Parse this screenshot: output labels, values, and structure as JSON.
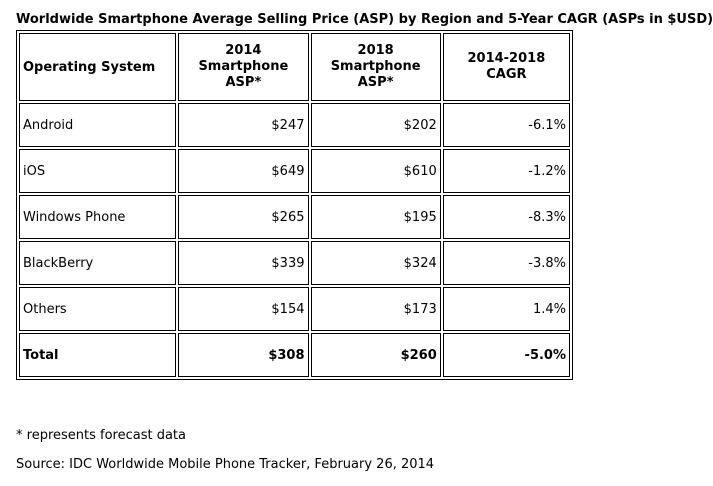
{
  "title": "Worldwide Smartphone Average Selling Price (ASP) by Region and 5-Year CAGR (ASPs in $USD)",
  "table": {
    "headers": [
      "Operating System",
      "2014 Smartphone ASP*",
      "2018 Smartphone ASP*",
      "2014-2018 CAGR"
    ],
    "rows": [
      [
        "Android",
        "$247",
        "$202",
        "-6.1%"
      ],
      [
        "iOS",
        "$649",
        "$610",
        "-1.2%"
      ],
      [
        "Windows Phone",
        "$265",
        "$195",
        "-8.3%"
      ],
      [
        "BlackBerry",
        "$339",
        "$324",
        "-3.8%"
      ],
      [
        "Others",
        "$154",
        "$173",
        "1.4%"
      ]
    ],
    "total": [
      "Total",
      "$308",
      "$260",
      "-5.0%"
    ]
  },
  "footnote": "* represents forecast data",
  "source": "Source: IDC Worldwide Mobile Phone Tracker, February 26, 2014"
}
